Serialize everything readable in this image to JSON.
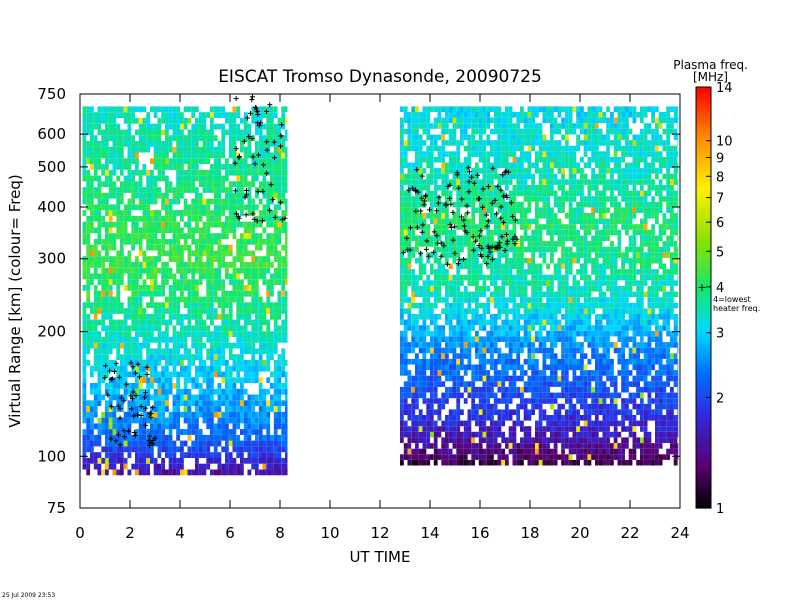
{
  "chart_data": {
    "type": "heatmap",
    "title": "EISCAT Tromso Dynasonde,   20090725",
    "xlabel": "UT TIME",
    "ylabel": "Virtual Range [km]    (colour= Freq)",
    "x_range": [
      0,
      24
    ],
    "x_ticks": [
      0,
      2,
      4,
      6,
      8,
      10,
      12,
      14,
      16,
      18,
      20,
      22,
      24
    ],
    "y_scale": "log",
    "y_range": [
      75,
      750
    ],
    "y_ticks": [
      75,
      100,
      200,
      300,
      400,
      500,
      600,
      750
    ],
    "colorbar": {
      "title": "Plasma freq.",
      "unit": "[MHz]",
      "range": [
        1,
        14
      ],
      "ticks": [
        1,
        2,
        3,
        4,
        5,
        6,
        7,
        8,
        9,
        10,
        14
      ],
      "marker_value": 4,
      "marker_note_line1": "4=lowest",
      "marker_note_line2": "heater freq."
    },
    "data_gaps": [
      [
        8.3,
        12.8
      ]
    ],
    "segments": [
      {
        "ut_start": 0.1,
        "ut_end": 8.3,
        "profile": [
          {
            "range_km": 90,
            "freq_mhz": 1.5
          },
          {
            "range_km": 110,
            "freq_mhz": 2.3
          },
          {
            "range_km": 150,
            "freq_mhz": 2.9
          },
          {
            "range_km": 200,
            "freq_mhz": 3.5
          },
          {
            "range_km": 300,
            "freq_mhz": 4.3
          },
          {
            "range_km": 450,
            "freq_mhz": 3.8
          },
          {
            "range_km": 700,
            "freq_mhz": 3.3
          }
        ]
      },
      {
        "ut_start": 12.8,
        "ut_end": 23.9,
        "profile": [
          {
            "range_km": 95,
            "freq_mhz": 1.2
          },
          {
            "range_km": 120,
            "freq_mhz": 1.8
          },
          {
            "range_km": 180,
            "freq_mhz": 2.5
          },
          {
            "range_km": 250,
            "freq_mhz": 3.5
          },
          {
            "range_km": 350,
            "freq_mhz": 3.9
          },
          {
            "range_km": 500,
            "freq_mhz": 3.4
          },
          {
            "range_km": 700,
            "freq_mhz": 3.1
          }
        ]
      }
    ],
    "marker_clusters": [
      {
        "ut_start": 6.2,
        "ut_end": 8.2,
        "range_min": 370,
        "range_max": 740
      },
      {
        "ut_start": 12.9,
        "ut_end": 17.5,
        "range_min": 290,
        "range_max": 500
      },
      {
        "ut_start": 1.0,
        "ut_end": 3.0,
        "range_min": 105,
        "range_max": 170
      }
    ]
  },
  "timestamp": "25 Jul 2009 23:53"
}
